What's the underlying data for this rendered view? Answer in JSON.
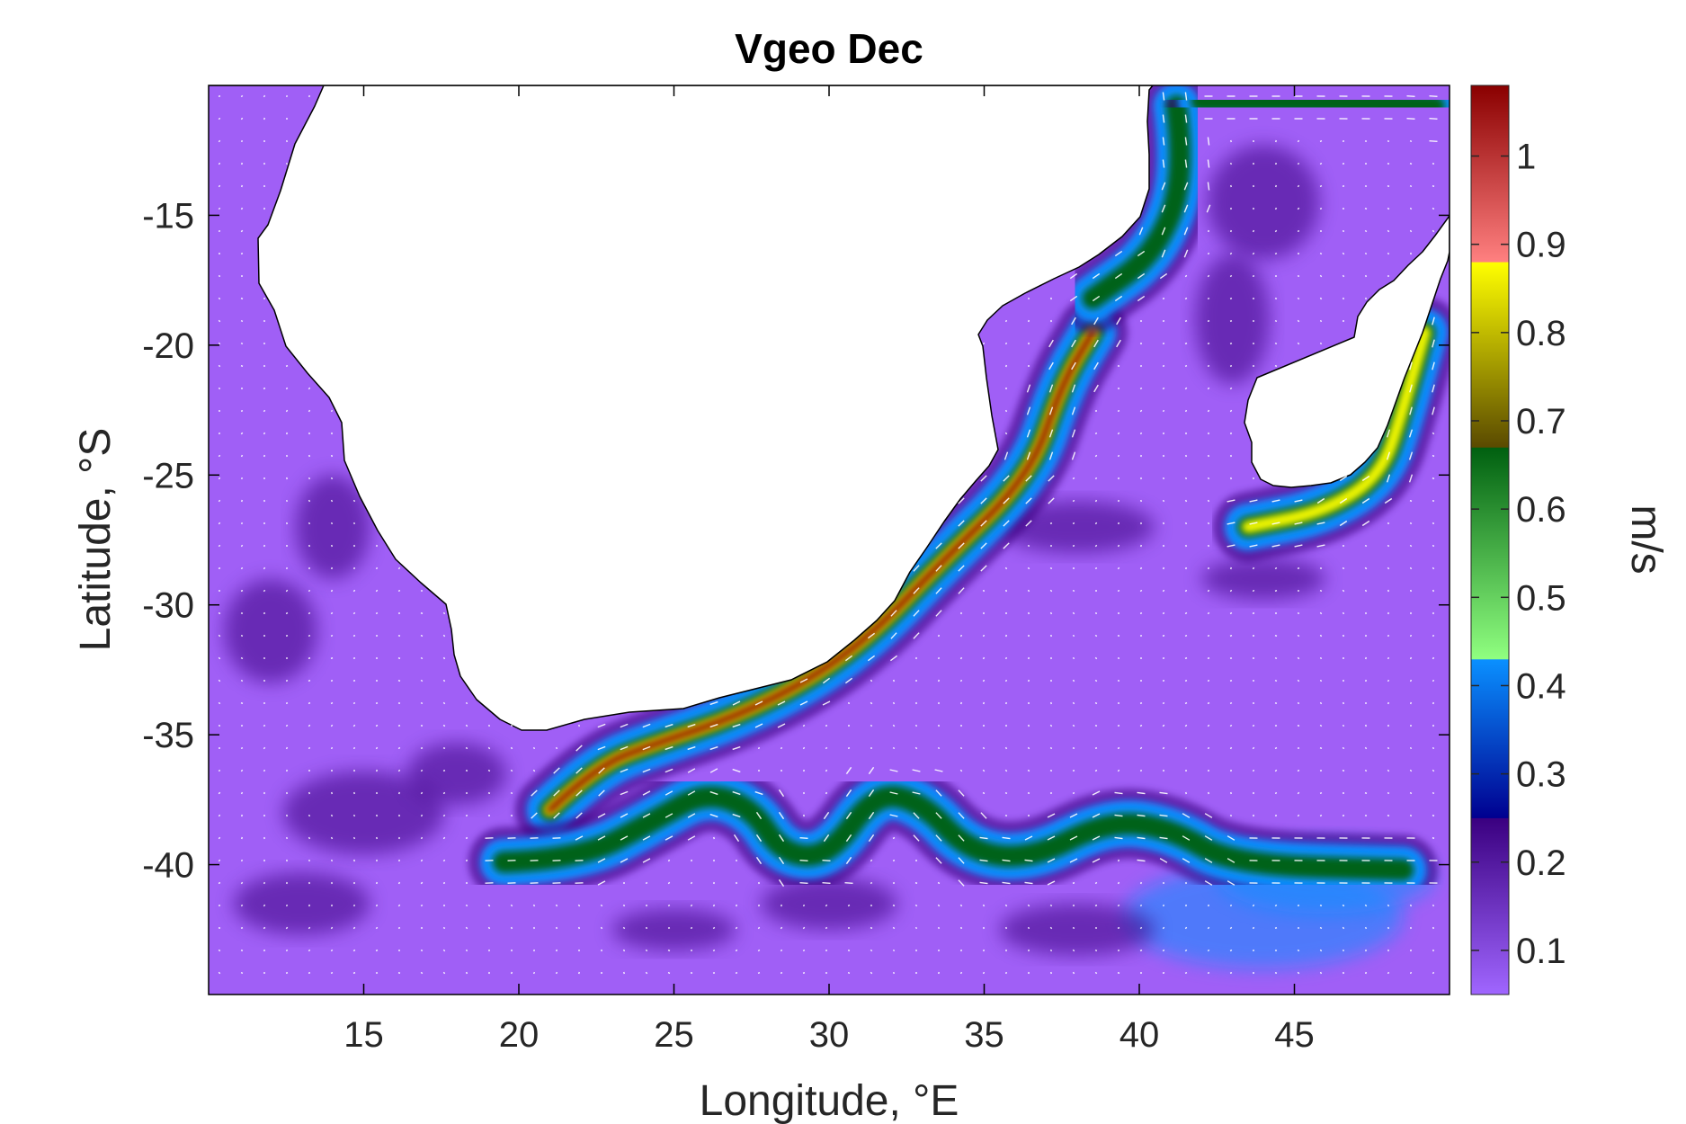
{
  "chart_data": {
    "type": "heatmap",
    "title": "Vgeo Dec",
    "xlabel": "Longitude, °E",
    "ylabel": "Latitude, °S",
    "xlim": [
      10,
      50
    ],
    "ylim": [
      -45,
      -10
    ],
    "x_ticks": [
      "15",
      "20",
      "25",
      "30",
      "35",
      "40",
      "45"
    ],
    "x_tick_values": [
      15,
      20,
      25,
      30,
      35,
      40,
      45
    ],
    "y_ticks": [
      "-15",
      "-20",
      "-25",
      "-30",
      "-35",
      "-40"
    ],
    "y_tick_values": [
      -15,
      -20,
      -25,
      -30,
      -35,
      -40
    ],
    "grid": false,
    "colorbar": {
      "label": "m/s",
      "range": [
        0.05,
        1.08
      ],
      "ticks": [
        "0.1",
        "0.2",
        "0.3",
        "0.4",
        "0.5",
        "0.6",
        "0.7",
        "0.8",
        "0.9",
        "1"
      ],
      "tick_values": [
        0.1,
        0.2,
        0.3,
        0.4,
        0.5,
        0.6,
        0.7,
        0.8,
        0.9,
        1.0
      ],
      "placement": "right",
      "bands": [
        {
          "from": 0.05,
          "to": 0.25,
          "color_from": "#a066ff",
          "color_to": "#3a0080"
        },
        {
          "from": 0.25,
          "to": 0.43,
          "color_from": "#000090",
          "color_to": "#0a90ff"
        },
        {
          "from": 0.43,
          "to": 0.67,
          "color_from": "#90ff80",
          "color_to": "#006010"
        },
        {
          "from": 0.67,
          "to": 0.88,
          "color_from": "#5a4a00",
          "color_to": "#ffff00"
        },
        {
          "from": 0.88,
          "to": 1.08,
          "color_from": "#ff8080",
          "color_to": "#8a0000"
        }
      ]
    },
    "background_color": "#a05ff6",
    "land_color": "#ffffff",
    "vector_color": "#ffffff",
    "features": {
      "agulhas_current_core": {
        "path": [
          [
            21,
            -37.9
          ],
          [
            22.5,
            -36.2
          ],
          [
            24.5,
            -35.3
          ],
          [
            27,
            -34.3
          ],
          [
            29.5,
            -32.8
          ],
          [
            31.5,
            -31.0
          ],
          [
            33.5,
            -28.5
          ],
          [
            36.5,
            -25.0
          ],
          [
            37.5,
            -21.5
          ],
          [
            38.5,
            -19.5
          ]
        ],
        "peak_speed": 1.05
      },
      "agulhas_return_current": {
        "path": [
          [
            19.5,
            -39.9
          ],
          [
            22,
            -39.8
          ],
          [
            24.5,
            -38.2
          ],
          [
            26,
            -37.2
          ],
          [
            27.5,
            -37.8
          ],
          [
            28.5,
            -39.6
          ],
          [
            30,
            -39.7
          ],
          [
            31.5,
            -37.2
          ],
          [
            33,
            -37.6
          ],
          [
            34.5,
            -39.5
          ],
          [
            36.5,
            -39.8
          ],
          [
            39,
            -38.3
          ],
          [
            41,
            -38.6
          ],
          [
            43,
            -40.0
          ],
          [
            48.5,
            -40.2
          ]
        ],
        "peak_speed": 0.5
      },
      "mozambique_channel_current": {
        "path": [
          [
            41.2,
            -10.8
          ],
          [
            41.5,
            -13.5
          ],
          [
            40.5,
            -16.5
          ],
          [
            38.5,
            -18.2
          ]
        ],
        "peak_speed": 0.6
      },
      "east_madagascar_current": {
        "path": [
          [
            49.2,
            -19.5
          ],
          [
            48.5,
            -22.5
          ],
          [
            47.8,
            -25.0
          ],
          [
            46,
            -26.4
          ],
          [
            43.5,
            -27.0
          ]
        ],
        "peak_speed": 0.9
      },
      "north_channel_jet": {
        "path": [
          [
            42,
            -10.6
          ],
          [
            45,
            -10.6
          ],
          [
            48,
            -10.7
          ],
          [
            49.5,
            -10.8
          ]
        ],
        "peak_speed": 0.6
      }
    }
  }
}
